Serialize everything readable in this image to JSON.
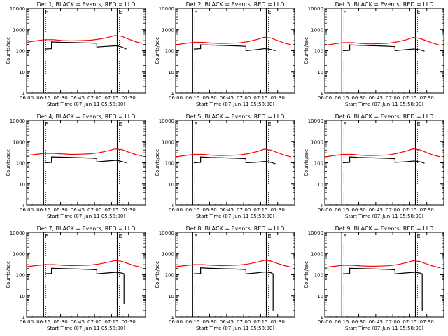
{
  "figure": {
    "x_ticks": [
      "06:00",
      "06:15",
      "06:30",
      "06:45",
      "07:00",
      "07:15",
      "07:30"
    ],
    "y_ticks": [
      "1",
      "10",
      "100",
      "1000",
      "10000"
    ],
    "x_label": "Start Time (07-Jun-11 05:58:00)",
    "y_label": "Counts/sec",
    "marker_labels": [
      "F",
      "E"
    ],
    "colors": {
      "events": "#000000",
      "lld": "#ff0000",
      "axes": "#000000",
      "background": "#ffffff"
    }
  },
  "chart_data": [
    {
      "type": "line",
      "title": "Det 1, BLACK = Events, RED = LLD",
      "xlim_minutes_after_0600": [
        0,
        105
      ],
      "ylim": [
        1,
        10000
      ],
      "y_scale": "log",
      "markers_minutes_after_0600": [
        15,
        80
      ],
      "series": [
        {
          "name": "Events",
          "x": [
            16,
            16,
            22,
            22,
            30,
            45,
            52,
            58,
            62,
            62,
            70,
            78,
            80,
            84,
            88
          ],
          "y": [
            null,
            120,
            125,
            260,
            250,
            240,
            235,
            230,
            225,
            150,
            160,
            170,
            170,
            150,
            120
          ]
        },
        {
          "name": "LLD",
          "x": [
            0,
            8,
            16,
            24,
            32,
            40,
            48,
            56,
            64,
            72,
            78,
            84,
            90,
            96,
            102
          ],
          "y": [
            250,
            290,
            330,
            330,
            300,
            290,
            300,
            310,
            350,
            420,
            520,
            480,
            350,
            270,
            220
          ]
        }
      ]
    },
    {
      "type": "line",
      "title": "Det 2, BLACK = Events, RED = LLD",
      "xlim_minutes_after_0600": [
        0,
        105
      ],
      "ylim": [
        1,
        10000
      ],
      "y_scale": "log",
      "markers_minutes_after_0600": [
        15,
        80
      ],
      "series": [
        {
          "name": "Events",
          "x": [
            16,
            16,
            22,
            22,
            30,
            45,
            52,
            58,
            62,
            62,
            70,
            78,
            80,
            84,
            88
          ],
          "y": [
            null,
            120,
            125,
            190,
            185,
            175,
            170,
            165,
            160,
            100,
            110,
            125,
            125,
            115,
            100
          ]
        },
        {
          "name": "LLD",
          "x": [
            0,
            8,
            16,
            24,
            32,
            40,
            48,
            56,
            64,
            72,
            78,
            84,
            90,
            96,
            102
          ],
          "y": [
            190,
            220,
            250,
            250,
            230,
            220,
            225,
            235,
            270,
            340,
            430,
            400,
            300,
            230,
            190
          ]
        }
      ]
    },
    {
      "type": "line",
      "title": "Det 3, BLACK = Events, RED = LLD",
      "xlim_minutes_after_0600": [
        0,
        105
      ],
      "ylim": [
        1,
        10000
      ],
      "y_scale": "log",
      "markers_minutes_after_0600": [
        15,
        80
      ],
      "series": [
        {
          "name": "Events",
          "x": [
            16,
            16,
            22,
            22,
            30,
            45,
            52,
            58,
            62,
            62,
            70,
            78,
            80,
            84,
            88
          ],
          "y": [
            null,
            100,
            105,
            190,
            180,
            170,
            165,
            160,
            155,
            100,
            110,
            120,
            120,
            110,
            95
          ]
        },
        {
          "name": "LLD",
          "x": [
            0,
            8,
            16,
            24,
            32,
            40,
            48,
            56,
            64,
            72,
            78,
            84,
            90,
            96,
            102
          ],
          "y": [
            180,
            210,
            240,
            240,
            220,
            210,
            215,
            225,
            260,
            330,
            420,
            380,
            290,
            220,
            180
          ]
        }
      ]
    },
    {
      "type": "line",
      "title": "Det 4, BLACK = Events, RED = LLD",
      "xlim_minutes_after_0600": [
        0,
        105
      ],
      "ylim": [
        1,
        10000
      ],
      "y_scale": "log",
      "markers_minutes_after_0600": [
        15,
        80
      ],
      "series": [
        {
          "name": "Events",
          "x": [
            16,
            16,
            22,
            22,
            30,
            45,
            52,
            58,
            62,
            62,
            70,
            78,
            80,
            84,
            88
          ],
          "y": [
            null,
            100,
            105,
            190,
            185,
            175,
            170,
            165,
            160,
            110,
            120,
            130,
            130,
            115,
            100
          ]
        },
        {
          "name": "LLD",
          "x": [
            0,
            8,
            16,
            24,
            32,
            40,
            48,
            56,
            64,
            72,
            78,
            84,
            90,
            96,
            102
          ],
          "y": [
            220,
            250,
            280,
            280,
            260,
            250,
            255,
            265,
            300,
            370,
            450,
            420,
            320,
            250,
            210
          ]
        }
      ]
    },
    {
      "type": "line",
      "title": "Det 5, BLACK = Events, RED = LLD",
      "xlim_minutes_after_0600": [
        0,
        105
      ],
      "ylim": [
        1,
        10000
      ],
      "y_scale": "log",
      "markers_minutes_after_0600": [
        15,
        80
      ],
      "series": [
        {
          "name": "Events",
          "x": [
            16,
            16,
            22,
            22,
            30,
            45,
            52,
            58,
            62,
            62,
            70,
            78,
            80,
            84,
            88
          ],
          "y": [
            null,
            100,
            105,
            190,
            180,
            170,
            165,
            160,
            155,
            100,
            105,
            115,
            115,
            105,
            90
          ]
        },
        {
          "name": "LLD",
          "x": [
            0,
            8,
            16,
            24,
            32,
            40,
            48,
            56,
            64,
            72,
            78,
            84,
            90,
            96,
            102
          ],
          "y": [
            190,
            220,
            250,
            250,
            230,
            220,
            225,
            235,
            270,
            340,
            440,
            400,
            300,
            230,
            190
          ]
        }
      ]
    },
    {
      "type": "line",
      "title": "Det 6, BLACK = Events, RED = LLD",
      "xlim_minutes_after_0600": [
        0,
        105
      ],
      "ylim": [
        1,
        10000
      ],
      "y_scale": "log",
      "markers_minutes_after_0600": [
        15,
        80
      ],
      "series": [
        {
          "name": "Events",
          "x": [
            16,
            16,
            22,
            22,
            30,
            45,
            52,
            58,
            62,
            62,
            70,
            78,
            80,
            84,
            88
          ],
          "y": [
            null,
            100,
            105,
            190,
            180,
            170,
            165,
            160,
            155,
            105,
            110,
            120,
            120,
            110,
            95
          ]
        },
        {
          "name": "LLD",
          "x": [
            0,
            8,
            16,
            24,
            32,
            40,
            48,
            56,
            64,
            72,
            78,
            84,
            90,
            96,
            102
          ],
          "y": [
            190,
            220,
            250,
            250,
            230,
            220,
            225,
            235,
            280,
            360,
            460,
            410,
            300,
            230,
            190
          ]
        }
      ]
    },
    {
      "type": "line",
      "title": "Det 7, BLACK = Events, RED = LLD",
      "xlim_minutes_after_0600": [
        0,
        105
      ],
      "ylim": [
        1,
        10000
      ],
      "y_scale": "log",
      "markers_minutes_after_0600": [
        15,
        80
      ],
      "series": [
        {
          "name": "Events",
          "x": [
            16,
            16,
            22,
            22,
            30,
            45,
            52,
            58,
            62,
            62,
            70,
            78,
            80,
            84,
            86,
            86
          ],
          "y": [
            null,
            110,
            115,
            200,
            195,
            185,
            180,
            175,
            170,
            110,
            120,
            130,
            130,
            120,
            110,
            4
          ]
        },
        {
          "name": "LLD",
          "x": [
            0,
            8,
            16,
            24,
            32,
            40,
            48,
            56,
            64,
            72,
            78,
            84,
            90,
            96,
            102
          ],
          "y": [
            240,
            270,
            300,
            300,
            280,
            270,
            275,
            285,
            320,
            390,
            470,
            430,
            330,
            260,
            220
          ]
        }
      ]
    },
    {
      "type": "line",
      "title": "Det 8, BLACK = Events, RED = LLD",
      "xlim_minutes_after_0600": [
        0,
        105
      ],
      "ylim": [
        1,
        10000
      ],
      "y_scale": "log",
      "markers_minutes_after_0600": [
        15,
        80
      ],
      "series": [
        {
          "name": "Events",
          "x": [
            16,
            16,
            22,
            22,
            30,
            45,
            52,
            58,
            62,
            62,
            70,
            78,
            80,
            84,
            86,
            86
          ],
          "y": [
            null,
            110,
            115,
            210,
            200,
            190,
            185,
            180,
            175,
            110,
            120,
            135,
            135,
            125,
            110,
            2
          ]
        },
        {
          "name": "LLD",
          "x": [
            0,
            8,
            16,
            24,
            32,
            40,
            48,
            56,
            64,
            72,
            78,
            84,
            90,
            96,
            102
          ],
          "y": [
            240,
            270,
            300,
            300,
            280,
            270,
            275,
            285,
            320,
            390,
            480,
            440,
            340,
            270,
            230
          ]
        }
      ]
    },
    {
      "type": "line",
      "title": "Det 9, BLACK = Events, RED = LLD",
      "xlim_minutes_after_0600": [
        0,
        105
      ],
      "ylim": [
        1,
        10000
      ],
      "y_scale": "log",
      "markers_minutes_after_0600": [
        15,
        80
      ],
      "series": [
        {
          "name": "Events",
          "x": [
            16,
            16,
            22,
            22,
            30,
            45,
            52,
            58,
            62,
            62,
            70,
            78,
            80,
            84,
            86,
            86
          ],
          "y": [
            null,
            110,
            115,
            200,
            195,
            185,
            180,
            175,
            170,
            110,
            120,
            130,
            130,
            120,
            110,
            2
          ]
        },
        {
          "name": "LLD",
          "x": [
            0,
            8,
            16,
            24,
            32,
            40,
            48,
            56,
            64,
            72,
            78,
            84,
            90,
            96,
            102
          ],
          "y": [
            220,
            250,
            280,
            280,
            260,
            250,
            255,
            265,
            300,
            370,
            460,
            420,
            320,
            250,
            210
          ]
        }
      ]
    }
  ]
}
